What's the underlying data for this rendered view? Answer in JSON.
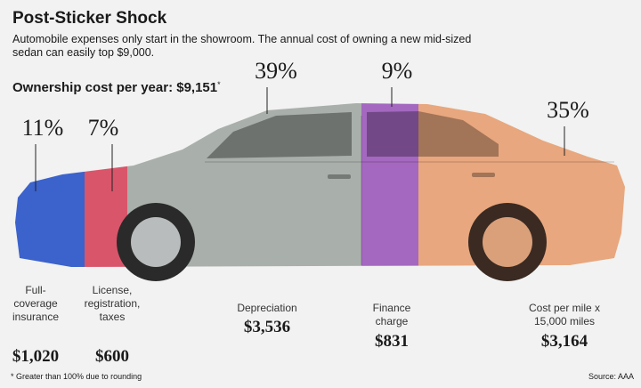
{
  "title": "Post-Sticker Shock",
  "subtitle": [
    "Automobile expenses only start in the showroom. The annual cost of owning a new mid-sized",
    "sedan can easily top $9,000."
  ],
  "total": {
    "label": "Ownership cost per year:",
    "amount": "$9,151",
    "note_mark": "*"
  },
  "segments": [
    {
      "percent": "11%",
      "label": [
        "Full-",
        "coverage",
        "insurance"
      ],
      "amount": "$1,020",
      "color": "#3c62cc"
    },
    {
      "percent": "7%",
      "label": [
        "License,",
        "registration,",
        "taxes"
      ],
      "amount": "$600",
      "color": "#d9556a"
    },
    {
      "percent": "39%",
      "label": [
        "Depreciation"
      ],
      "amount": "$3,536",
      "color": "#a9afab"
    },
    {
      "percent": "9%",
      "label": [
        "Finance",
        "charge"
      ],
      "amount": "$831",
      "color": "#a468c0"
    },
    {
      "percent": "35%",
      "label": [
        "Cost per mile x",
        "15,000 miles"
      ],
      "amount": "$3,164",
      "color": "#e8a77e"
    }
  ],
  "footnote": "* Greater than 100% due to rounding",
  "source": "Source: AAA"
}
